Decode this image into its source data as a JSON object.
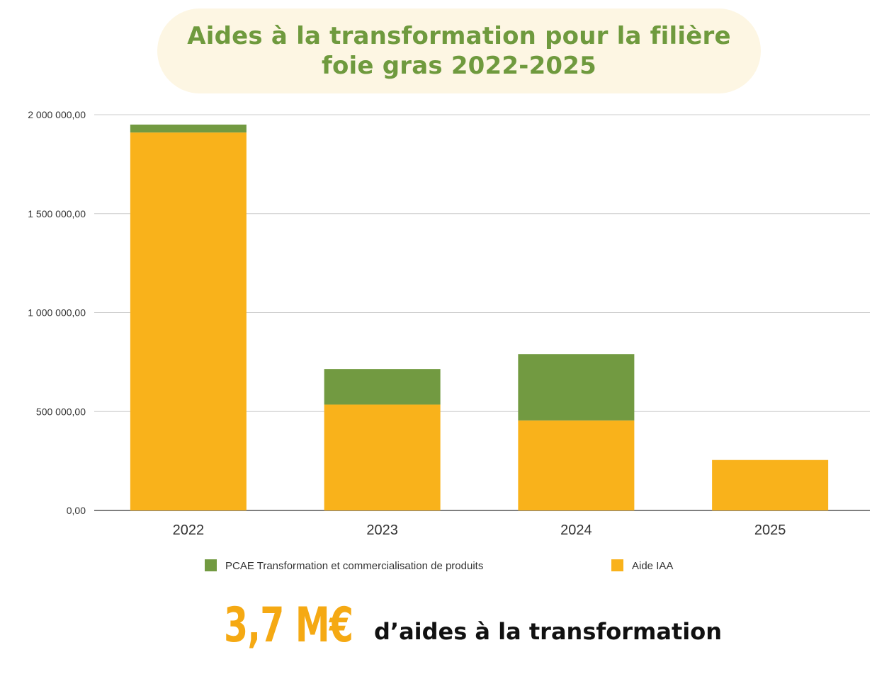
{
  "header": {
    "title_line1": "Aides à la transformation pour la filière",
    "title_line2": "foie gras 2022-2025"
  },
  "colors": {
    "accent_green": "#6f9a3e",
    "accent_orange": "#f5a913",
    "title_background": "#fdf6e3"
  },
  "chart_data": {
    "type": "bar",
    "stacked": true,
    "categories": [
      "2022",
      "2023",
      "2024",
      "2025"
    ],
    "series": [
      {
        "name": "Aide IAA",
        "color": "#f9b21b",
        "values": [
          1910000,
          535000,
          455000,
          255000
        ]
      },
      {
        "name": "PCAE Transformation et commercialisation de produits",
        "color": "#729a41",
        "values": [
          40000,
          180000,
          335000,
          0
        ]
      }
    ],
    "yticks": [
      "0,00",
      "500 000,00",
      "1 000 000,00",
      "1 500 000,00",
      "2 000 000,00"
    ],
    "ylim": [
      0,
      2000000
    ],
    "grid": true,
    "legend_position": "bottom"
  },
  "summary": {
    "value": "3,7 M€",
    "label": "d’aides à la transformation"
  }
}
